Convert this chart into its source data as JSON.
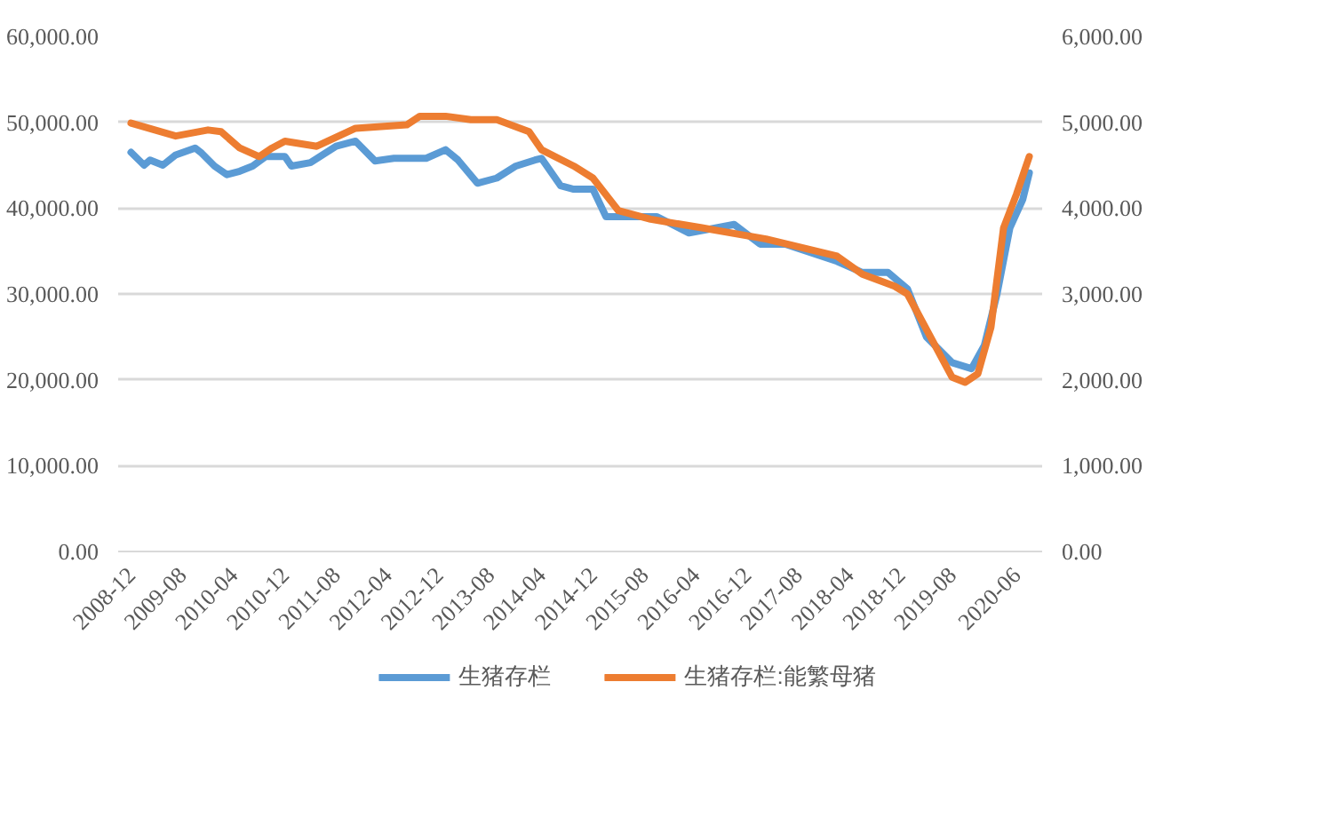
{
  "chart_data": {
    "type": "line",
    "xlim": [
      "2008-10",
      "2020-10"
    ],
    "xticks": [
      "2008-12",
      "2009-08",
      "2010-04",
      "2010-12",
      "2011-08",
      "2012-04",
      "2012-12",
      "2013-08",
      "2014-04",
      "2014-12",
      "2015-08",
      "2016-04",
      "2016-12",
      "2017-08",
      "2018-04",
      "2018-12",
      "2019-08",
      "2020-06"
    ],
    "ylim": [
      0,
      60000
    ],
    "yticks": [
      {
        "value": 0,
        "label": "0.00"
      },
      {
        "value": 10000,
        "label": "10,000.00"
      },
      {
        "value": 20000,
        "label": "20,000.00"
      },
      {
        "value": 30000,
        "label": "30,000.00"
      },
      {
        "value": 40000,
        "label": "40,000.00"
      },
      {
        "value": 50000,
        "label": "50,000.00"
      },
      {
        "value": 60000,
        "label": "60,000.00"
      }
    ],
    "y2lim": [
      0,
      6000
    ],
    "y2ticks": [
      {
        "value": 0,
        "label": "0.00"
      },
      {
        "value": 1000,
        "label": "1,000.00"
      },
      {
        "value": 2000,
        "label": "2,000.00"
      },
      {
        "value": 3000,
        "label": "3,000.00"
      },
      {
        "value": 4000,
        "label": "4,000.00"
      },
      {
        "value": 5000,
        "label": "5,000.00"
      },
      {
        "value": 6000,
        "label": "6,000.00"
      }
    ],
    "grid": "y",
    "legend": "bottom",
    "series": [
      {
        "name": "生猪存栏",
        "color": "#5b9bd5",
        "x": [
          "2008-12",
          "2009-02",
          "2009-03",
          "2009-05",
          "2009-07",
          "2009-10",
          "2009-11",
          "2010-01",
          "2010-03",
          "2010-05",
          "2010-07",
          "2010-09",
          "2010-12",
          "2011-01",
          "2011-04",
          "2011-08",
          "2011-11",
          "2012-02",
          "2012-05",
          "2012-10",
          "2013-01",
          "2013-03",
          "2013-06",
          "2013-09",
          "2013-12",
          "2014-03",
          "2014-04",
          "2014-07",
          "2014-09",
          "2014-12",
          "2015-02",
          "2015-10",
          "2016-03",
          "2016-10",
          "2017-02",
          "2017-06",
          "2018-02",
          "2018-06",
          "2018-10",
          "2019-01",
          "2019-04",
          "2019-08",
          "2019-11",
          "2020-01",
          "2020-03",
          "2020-05",
          "2020-07",
          "2020-08"
        ],
        "values": [
          46500,
          45000,
          45600,
          45000,
          46200,
          47000,
          46400,
          44900,
          43900,
          44300,
          44900,
          46000,
          46000,
          44900,
          45300,
          47200,
          47800,
          45500,
          45800,
          45800,
          46800,
          45600,
          42900,
          43500,
          44900,
          45600,
          45800,
          42600,
          42200,
          42200,
          39000,
          39000,
          37100,
          38100,
          35800,
          35800,
          33800,
          32500,
          32500,
          30600,
          25000,
          22000,
          21300,
          24000,
          30000,
          37700,
          41000,
          44100
        ]
      },
      {
        "name": "生猪存栏:能繁母猪",
        "color": "#ed7d31",
        "axis": "y2",
        "x": [
          "2008-12",
          "2009-07",
          "2009-12",
          "2010-02",
          "2010-05",
          "2010-08",
          "2010-10",
          "2010-12",
          "2011-05",
          "2011-11",
          "2012-07",
          "2012-09",
          "2013-01",
          "2013-05",
          "2013-09",
          "2014-02",
          "2014-04",
          "2014-09",
          "2014-12",
          "2015-04",
          "2015-09",
          "2016-05",
          "2017-03",
          "2018-02",
          "2018-06",
          "2018-11",
          "2019-01",
          "2019-08",
          "2019-10",
          "2019-12",
          "2020-02",
          "2020-04",
          "2020-06",
          "2020-08"
        ],
        "values": [
          4990,
          4840,
          4910,
          4890,
          4700,
          4600,
          4700,
          4780,
          4720,
          4930,
          4970,
          5070,
          5070,
          5030,
          5030,
          4890,
          4680,
          4490,
          4350,
          3970,
          3870,
          3770,
          3640,
          3440,
          3230,
          3090,
          3000,
          2030,
          1970,
          2070,
          2610,
          3770,
          4160,
          4600
        ]
      }
    ]
  }
}
